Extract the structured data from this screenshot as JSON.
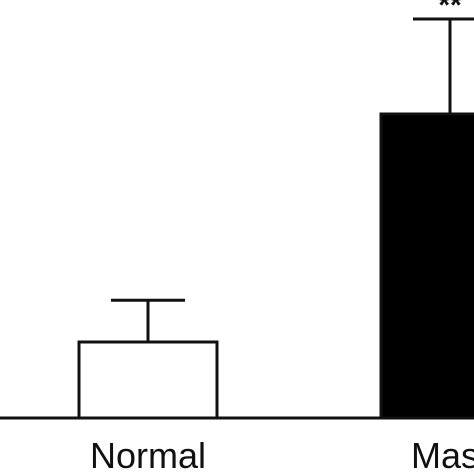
{
  "chart_data": {
    "type": "bar",
    "categories": [
      "Normal",
      "Mast"
    ],
    "series": [
      {
        "values": [
          1.0,
          4.0
        ],
        "errors": [
          0.55,
          1.25
        ],
        "fill_colors": [
          "#ffffff",
          "#000000"
        ]
      }
    ],
    "annotations": [
      "",
      "**"
    ],
    "ylim": [
      0,
      6
    ],
    "grid": false,
    "legend": "none",
    "title": "",
    "xlabel": "",
    "ylabel": ""
  }
}
